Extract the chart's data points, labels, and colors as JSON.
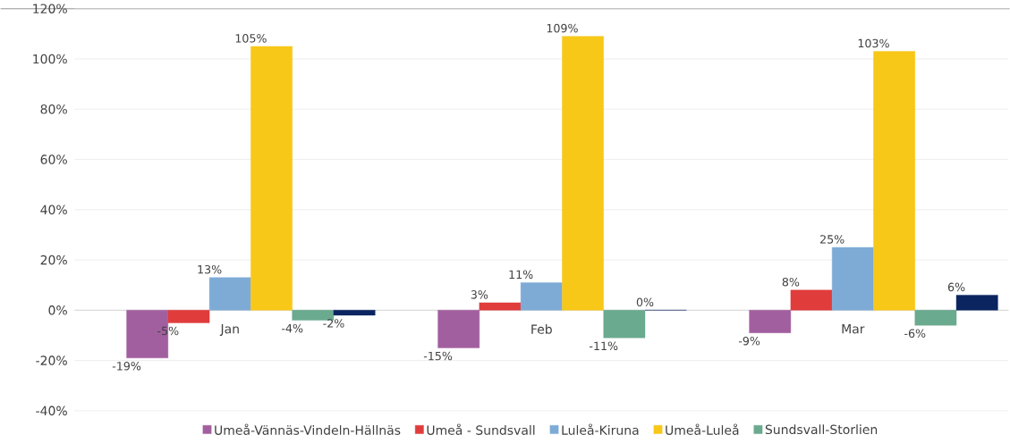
{
  "chart_data": {
    "type": "bar",
    "categories": [
      "Jan",
      "Feb",
      "Mar"
    ],
    "series": [
      {
        "name": "Umeå-Vännäs-Vindeln-Hällnäs",
        "color": "#a25f9f",
        "values": [
          -19,
          -15,
          -9
        ],
        "value_labels": [
          "-19%",
          "-15%",
          "-9%"
        ]
      },
      {
        "name": "Umeå - Sundsvall",
        "color": "#e03c3c",
        "values": [
          -5,
          3,
          8
        ],
        "value_labels": [
          "-5%",
          "3%",
          "8%"
        ]
      },
      {
        "name": "Luleå-Kiruna",
        "color": "#7eabd6",
        "values": [
          13,
          11,
          25
        ],
        "value_labels": [
          "13%",
          "11%",
          "25%"
        ]
      },
      {
        "name": "Umeå-Luleå",
        "color": "#f8c818",
        "values": [
          105,
          109,
          103
        ],
        "value_labels": [
          "105%",
          "109%",
          "103%"
        ]
      },
      {
        "name": "Sundsvall-Storlien",
        "color": "#6aaa8f",
        "values": [
          -4,
          -11,
          -6
        ],
        "value_labels": [
          "-4%",
          "-11%",
          "-6%"
        ]
      },
      {
        "color": "#0b2560",
        "values": [
          -2,
          0,
          6
        ],
        "value_labels": [
          "-2%",
          "0%",
          "6%"
        ]
      }
    ],
    "ylim": [
      -40,
      120
    ],
    "yticks": [
      {
        "value": -40,
        "label": "-40%"
      },
      {
        "value": -20,
        "label": "-20%"
      },
      {
        "value": 0,
        "label": "0%"
      },
      {
        "value": 20,
        "label": "20%"
      },
      {
        "value": 40,
        "label": "40%"
      },
      {
        "value": 60,
        "label": "60%"
      },
      {
        "value": 80,
        "label": "80%"
      },
      {
        "value": 100,
        "label": "100%"
      },
      {
        "value": 120,
        "label": "120%"
      }
    ],
    "grid": "y",
    "legend": "bottom"
  }
}
